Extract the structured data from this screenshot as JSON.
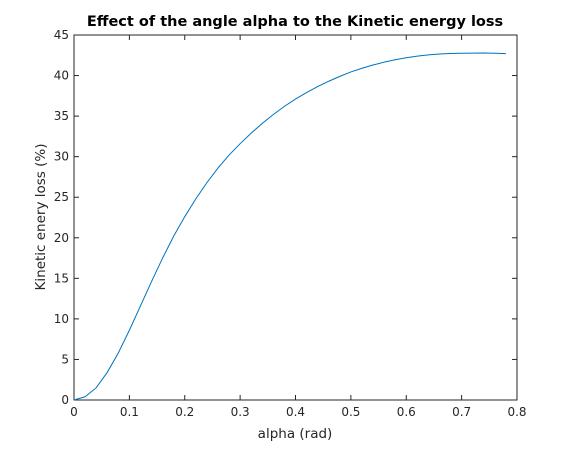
{
  "chart_data": {
    "type": "line",
    "title": "Effect of the angle alpha to the Kinetic energy loss",
    "xlabel": "alpha (rad)",
    "ylabel": "Kinetic enery loss (%)",
    "xlim": [
      0,
      0.8
    ],
    "ylim": [
      0,
      45
    ],
    "x_ticks": [
      "0",
      "0.1",
      "0.2",
      "0.3",
      "0.4",
      "0.5",
      "0.6",
      "0.7",
      "0.8"
    ],
    "y_ticks": [
      "0",
      "5",
      "10",
      "15",
      "20",
      "25",
      "30",
      "35",
      "40",
      "45"
    ],
    "grid": false,
    "legend": "none",
    "line_color": "#0072BD",
    "series": [
      {
        "x": [
          0,
          0.02,
          0.04,
          0.06,
          0.08,
          0.1,
          0.12,
          0.14,
          0.16,
          0.18,
          0.2,
          0.22,
          0.24,
          0.26,
          0.28,
          0.3,
          0.32,
          0.34,
          0.36,
          0.38,
          0.4,
          0.42,
          0.44,
          0.46,
          0.48,
          0.5,
          0.52,
          0.54,
          0.56,
          0.58,
          0.6,
          0.62,
          0.64,
          0.66,
          0.68,
          0.7,
          0.72,
          0.74,
          0.76,
          0.78
        ],
        "values": [
          0,
          0.4,
          1.5,
          3.4,
          5.8,
          8.6,
          11.6,
          14.6,
          17.5,
          20.2,
          22.6,
          24.8,
          26.8,
          28.6,
          30.2,
          31.6,
          32.9,
          34.1,
          35.2,
          36.2,
          37.1,
          37.9,
          38.65,
          39.3,
          39.9,
          40.45,
          40.9,
          41.3,
          41.65,
          41.95,
          42.2,
          42.4,
          42.55,
          42.65,
          42.72,
          42.75,
          42.77,
          42.78,
          42.75,
          42.7
        ]
      }
    ]
  }
}
